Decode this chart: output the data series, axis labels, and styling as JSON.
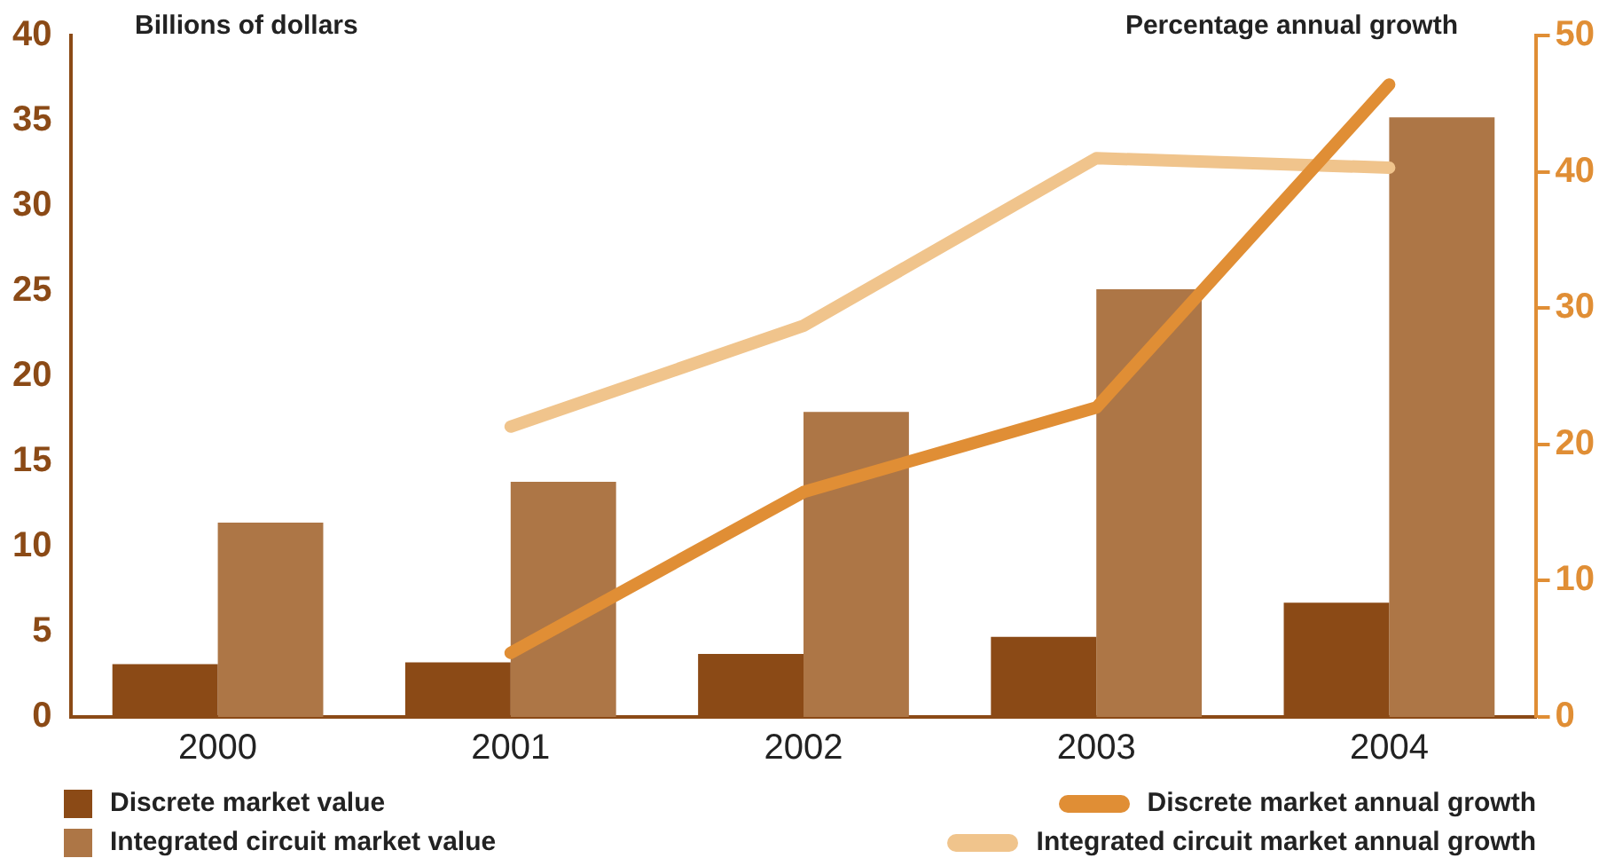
{
  "chart_data": {
    "type": "bar",
    "ylabel": "Billions of dollars",
    "y2label": "Percentage annual growth",
    "categories": [
      "2000",
      "2001",
      "2002",
      "2003",
      "2004"
    ],
    "series": [
      {
        "name": "Discrete market value",
        "color": "#8b4a16",
        "values": [
          3.1,
          3.2,
          3.7,
          4.7,
          6.7
        ]
      },
      {
        "name": "Integrated circuit market value",
        "color": "#ad7646",
        "values": [
          11.4,
          13.8,
          17.9,
          25.1,
          35.2
        ]
      },
      {
        "name": "Discrete market annual growth",
        "type": "line",
        "axis": "y2",
        "color": "#e08e35",
        "values": [
          null,
          4.7,
          16.5,
          22.7,
          46.4
        ]
      },
      {
        "name": "Integrated circuit market annual growth",
        "type": "line",
        "axis": "y2",
        "color": "#f0c48c",
        "values": [
          null,
          21.3,
          28.7,
          41,
          40.3
        ]
      }
    ],
    "ylim": [
      0,
      40
    ],
    "yticks": [
      0,
      5,
      10,
      15,
      20,
      25,
      30,
      35,
      40
    ],
    "y2lim": [
      0,
      50
    ],
    "y2ticks": [
      0,
      10,
      20,
      30,
      40,
      50
    ],
    "grid": false,
    "legend": "bottom",
    "marker": "none"
  }
}
